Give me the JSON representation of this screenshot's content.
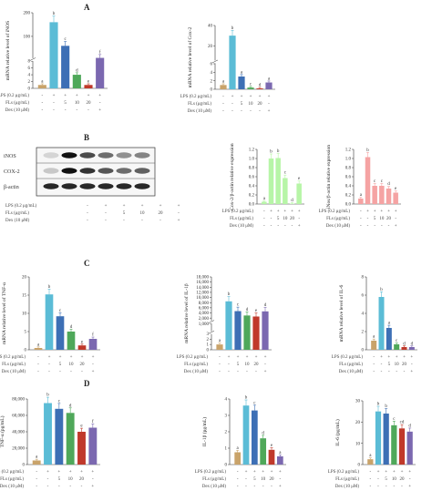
{
  "panel_labels": [
    "A",
    "B",
    "C",
    "D"
  ],
  "treatment_rows": {
    "lps": "LPS (0.2 μg/mL)",
    "fls": "FLs (μg/mL)",
    "dex": "Dex (10 μM)",
    "lps_values": [
      "-",
      "+",
      "+",
      "+",
      "+",
      "+"
    ],
    "fls_values": [
      "-",
      "-",
      "5",
      "10",
      "20",
      "-"
    ],
    "dex_values": [
      "-",
      "-",
      "-",
      "-",
      "-",
      "+"
    ]
  },
  "blot": {
    "bands": [
      "iNOS",
      "COX-2",
      "β-actin"
    ],
    "lps_label": "LPS (0.2 μg/mL)",
    "fls_label": "FLs (μg/mL)",
    "dex_label": "Dex (10 μM)"
  },
  "colors": {
    "control": "#c9a36a",
    "lps": "#5bbcd6",
    "fls5": "#3d6fb5",
    "fls10": "#4fa85a",
    "fls20": "#c0392b",
    "dex": "#7b68b0",
    "cox2_bar": "#b7f5a7",
    "inos_bar": "#f5a3a3"
  },
  "chart_data": [
    {
      "id": "A1",
      "type": "bar",
      "ylabel": "mRNA relative level of iNOS",
      "yticks": [
        "0",
        "2",
        "4",
        "6",
        "8",
        "100",
        "200"
      ],
      "values": [
        1,
        160,
        60,
        4,
        1,
        9
      ],
      "letters": [
        "a",
        "b",
        "c",
        "d",
        "e",
        "f"
      ]
    },
    {
      "id": "A2",
      "type": "bar",
      "ylabel": "mRNA relative level of Cox-2",
      "yticks": [
        "0",
        "2",
        "4",
        "6",
        "20",
        "40"
      ],
      "values": [
        1,
        30,
        3.0,
        0.4,
        0.2,
        1.6
      ],
      "letters": [
        "a",
        "b",
        "a",
        "c",
        "d",
        "a"
      ]
    },
    {
      "id": "B1",
      "type": "bar",
      "ylabel": "Cox-2/β-actin relative expression",
      "yticks": [
        "0.0",
        "0.2",
        "0.4",
        "0.6",
        "0.8",
        "1.0",
        "1.2"
      ],
      "ylim": [
        0,
        1.2
      ],
      "values": [
        0.05,
        1.0,
        1.01,
        0.57,
        0.01,
        0.45
      ],
      "letters": [
        "a",
        "b",
        "b",
        "c",
        "d",
        "e"
      ]
    },
    {
      "id": "B2",
      "type": "bar",
      "ylabel": "iNos/β-actin relative expression",
      "yticks": [
        "0.0",
        "0.2",
        "0.4",
        "0.6",
        "0.8",
        "1.0",
        "1.2"
      ],
      "ylim": [
        0,
        1.2
      ],
      "values": [
        0.12,
        1.03,
        0.4,
        0.4,
        0.34,
        0.25
      ],
      "letters": [
        "a",
        "b",
        "c",
        "c",
        "d",
        "e"
      ]
    },
    {
      "id": "C1",
      "type": "bar",
      "ylabel": "mRNA relative level of TNF-α",
      "yticks": [
        "0",
        "5",
        "10",
        "15",
        "20"
      ],
      "ylim": [
        0,
        20
      ],
      "values": [
        0.5,
        15.2,
        9.2,
        5.0,
        1.2,
        3.0
      ],
      "letters": [
        "a",
        "b",
        "c",
        "d",
        "e",
        "f"
      ]
    },
    {
      "id": "C2",
      "type": "bar",
      "ylabel": "mRNA relative level of IL-1β",
      "yticks": [
        "0",
        "1",
        "2",
        "3",
        "1,000",
        "2,000",
        "4,000",
        "6,000",
        "8,000",
        "10,000",
        "12,000",
        "14,000",
        "16,000",
        "18,000"
      ],
      "values": [
        1,
        8500,
        4700,
        3000,
        2600,
        4600
      ],
      "letters": [
        "a",
        "b",
        "c",
        "d",
        "e",
        "d"
      ]
    },
    {
      "id": "C3",
      "type": "bar",
      "ylabel": "mRNA relative level of IL-6",
      "yticks": [
        "0",
        "2",
        "4",
        "6",
        "8"
      ],
      "ylim": [
        0,
        8
      ],
      "values": [
        1.0,
        5.8,
        2.4,
        0.6,
        0.3,
        0.3
      ],
      "letters": [
        "a",
        "b",
        "a",
        "c",
        "d",
        "d"
      ]
    },
    {
      "id": "D1",
      "type": "bar",
      "ylabel": "TNF-α (pg/mL)",
      "yticks": [
        "0",
        "20,000",
        "40,000",
        "60,000",
        "80,000"
      ],
      "ylim": [
        0,
        80000
      ],
      "values": [
        5000,
        75000,
        68000,
        63000,
        40000,
        45000
      ],
      "letters": [
        "a",
        "b",
        "c",
        "d",
        "e",
        "f"
      ]
    },
    {
      "id": "D2",
      "type": "bar",
      "ylabel": "IL-1β (pg/mL)",
      "yticks": [
        "0",
        "1",
        "2",
        "3",
        "4"
      ],
      "ylim": [
        0,
        4
      ],
      "values": [
        0.75,
        3.6,
        3.3,
        1.6,
        0.9,
        0.5
      ],
      "letters": [
        "a",
        "b",
        "c",
        "d",
        "e",
        "a"
      ]
    },
    {
      "id": "D3",
      "type": "bar",
      "ylabel": "IL-6 (pg/mL)",
      "yticks": [
        "0",
        "10",
        "20",
        "30"
      ],
      "ylim": [
        0,
        30
      ],
      "values": [
        2.5,
        25,
        24,
        18.5,
        17,
        15.5
      ],
      "letters": [
        "a",
        "b",
        "b",
        "c",
        "cd",
        "d"
      ]
    }
  ]
}
